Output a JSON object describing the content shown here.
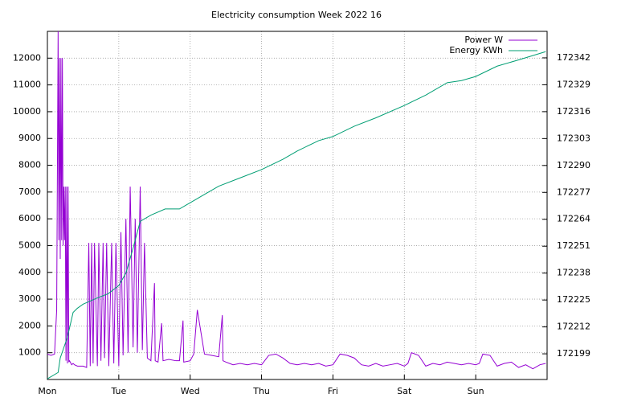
{
  "chart_data": {
    "type": "line",
    "title": "Electricity consumption Week 2022 16",
    "xlim": [
      0,
      7
    ],
    "xticks": [
      {
        "value": 0,
        "label": "Mon"
      },
      {
        "value": 1,
        "label": "Tue"
      },
      {
        "value": 2,
        "label": "Wed"
      },
      {
        "value": 3,
        "label": "Thu"
      },
      {
        "value": 4,
        "label": "Fri"
      },
      {
        "value": 5,
        "label": "Sat"
      },
      {
        "value": 6,
        "label": "Sun"
      }
    ],
    "ylim": [
      0,
      13000
    ],
    "yticks": [
      1000,
      2000,
      3000,
      4000,
      5000,
      6000,
      7000,
      8000,
      9000,
      10000,
      11000,
      12000
    ],
    "y2lim": [
      172186.6,
      172354.8
    ],
    "y2ticks": [
      172199,
      172212,
      172225,
      172238,
      172251,
      172264,
      172277,
      172290,
      172303,
      172316,
      172329,
      172342
    ],
    "grid": true,
    "legend": "top-right",
    "series": [
      {
        "name": "Power W",
        "color": "#9400d3",
        "x": [
          0,
          0.05,
          0.1,
          0.13,
          0.15,
          0.16,
          0.17,
          0.18,
          0.19,
          0.2,
          0.21,
          0.22,
          0.23,
          0.24,
          0.25,
          0.26,
          0.27,
          0.28,
          0.29,
          0.3,
          0.31,
          0.32,
          0.33,
          0.34,
          0.36,
          0.38,
          0.42,
          0.5,
          0.55,
          0.58,
          0.6,
          0.62,
          0.64,
          0.66,
          0.7,
          0.72,
          0.75,
          0.78,
          0.8,
          0.83,
          0.86,
          0.9,
          0.93,
          0.96,
          1.0,
          1.03,
          1.06,
          1.1,
          1.13,
          1.16,
          1.2,
          1.23,
          1.26,
          1.3,
          1.33,
          1.36,
          1.4,
          1.45,
          1.5,
          1.51,
          1.55,
          1.6,
          1.62,
          1.7,
          1.8,
          1.85,
          1.9,
          1.91,
          2.0,
          2.05,
          2.1,
          2.2,
          2.3,
          2.4,
          2.45,
          2.46,
          2.5,
          2.55,
          2.6,
          2.7,
          2.8,
          2.9,
          3.0,
          3.1,
          3.2,
          3.3,
          3.4,
          3.5,
          3.6,
          3.7,
          3.8,
          3.9,
          4.0,
          4.1,
          4.2,
          4.3,
          4.4,
          4.5,
          4.6,
          4.7,
          4.8,
          4.9,
          5.0,
          5.05,
          5.1,
          5.2,
          5.3,
          5.4,
          5.5,
          5.6,
          5.7,
          5.8,
          5.9,
          6.0,
          6.05,
          6.1,
          6.2,
          6.3,
          6.4,
          6.5,
          6.6,
          6.7,
          6.8,
          6.9,
          6.98
        ],
        "values": [
          950,
          900,
          950,
          2600,
          13000,
          5200,
          12000,
          4500,
          12000,
          5200,
          12000,
          5000,
          7200,
          5200,
          7200,
          700,
          7200,
          600,
          7200,
          650,
          700,
          650,
          600,
          550,
          600,
          550,
          500,
          500,
          450,
          5100,
          500,
          5100,
          600,
          5100,
          500,
          5100,
          700,
          5100,
          800,
          5100,
          500,
          5100,
          600,
          5100,
          500,
          5500,
          900,
          6000,
          1000,
          7200,
          1200,
          6000,
          1000,
          7200,
          1100,
          5100,
          800,
          700,
          3600,
          700,
          650,
          2100,
          700,
          750,
          700,
          700,
          2200,
          650,
          700,
          950,
          2600,
          950,
          900,
          850,
          2400,
          700,
          650,
          600,
          550,
          600,
          550,
          600,
          550,
          900,
          950,
          800,
          600,
          550,
          600,
          550,
          600,
          500,
          550,
          950,
          900,
          800,
          550,
          500,
          600,
          500,
          550,
          600,
          500,
          600,
          1000,
          900,
          500,
          600,
          550,
          650,
          600,
          550,
          600,
          550,
          600,
          950,
          900,
          500,
          600,
          650,
          450,
          550,
          400,
          550,
          600
        ]
      },
      {
        "name": "Energy KWh",
        "color": "#009e73",
        "axis": "y2",
        "x": [
          0,
          0.15,
          0.18,
          0.28,
          0.36,
          0.42,
          0.5,
          0.7,
          0.85,
          1.0,
          1.1,
          1.2,
          1.3,
          1.45,
          1.65,
          1.85,
          2.0,
          2.2,
          2.4,
          2.7,
          3.0,
          3.3,
          3.5,
          3.8,
          4.0,
          4.3,
          4.6,
          5.0,
          5.3,
          5.6,
          5.8,
          6.0,
          6.3,
          6.6,
          6.98
        ],
        "values": [
          172186.9,
          172190,
          172197,
          172207,
          172219,
          172221,
          172223,
          172226,
          172228,
          172232,
          172238,
          172250,
          172263,
          172266,
          172269,
          172269,
          172272,
          172276,
          172280,
          172284,
          172288,
          172293,
          172297,
          172302,
          172304,
          172309,
          172313,
          172319,
          172324,
          172330,
          172331,
          172333,
          172338,
          172341,
          172345
        ]
      }
    ]
  }
}
